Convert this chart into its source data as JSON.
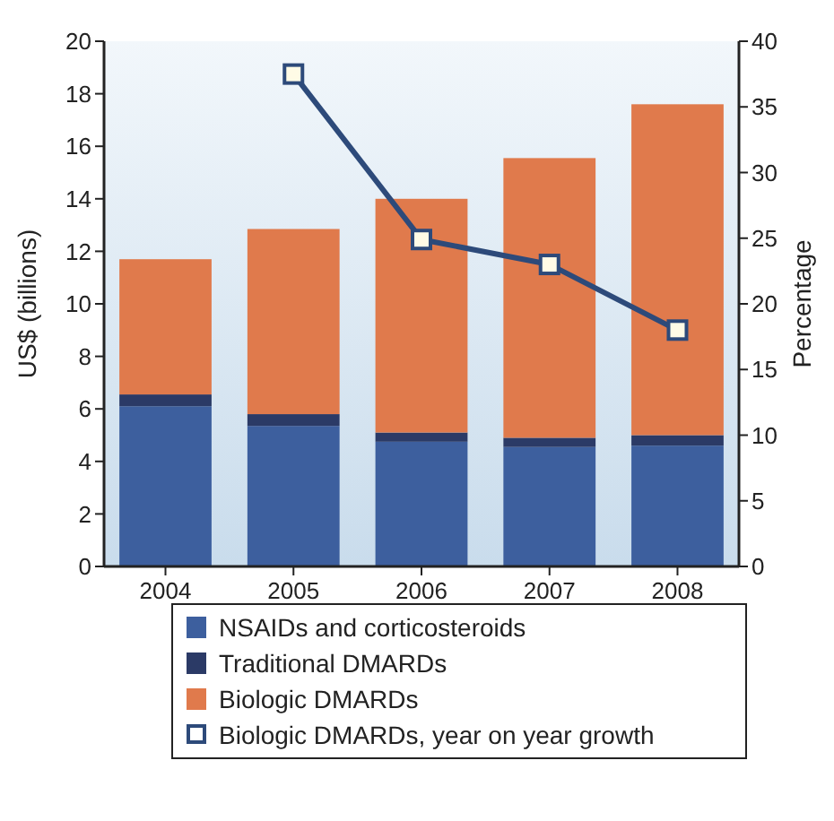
{
  "chart_data": {
    "type": "bar",
    "stacked": true,
    "categories": [
      "2004",
      "2005",
      "2006",
      "2007",
      "2008"
    ],
    "ylabel": "US$ (billions)",
    "y2label": "Percentage",
    "ylim": [
      0,
      20
    ],
    "yticks": [
      0,
      2,
      4,
      6,
      8,
      10,
      12,
      14,
      16,
      18,
      20
    ],
    "y2lim": [
      0,
      40
    ],
    "y2ticks": [
      0,
      5,
      10,
      15,
      20,
      25,
      30,
      35,
      40
    ],
    "grid": false,
    "legend": "bottom",
    "marker": "square",
    "series": [
      {
        "name": "NSAIDs and corticosteroids",
        "color": "#3d5f9e",
        "values": [
          6.1,
          5.35,
          4.75,
          4.55,
          4.6
        ]
      },
      {
        "name": "Traditional DMARDs",
        "color": "#2b3a66",
        "values": [
          0.45,
          0.45,
          0.35,
          0.35,
          0.4
        ]
      },
      {
        "name": "Biologic DMARDs",
        "color": "#e07a4c",
        "values": [
          5.15,
          7.05,
          8.9,
          10.65,
          12.6
        ]
      },
      {
        "name": "Biologic DMARDs, year on year growth",
        "type": "line",
        "axis": "y2",
        "color": "#2d4a7a",
        "values": [
          null,
          37.5,
          24.9,
          23.0,
          18.0
        ]
      }
    ]
  }
}
